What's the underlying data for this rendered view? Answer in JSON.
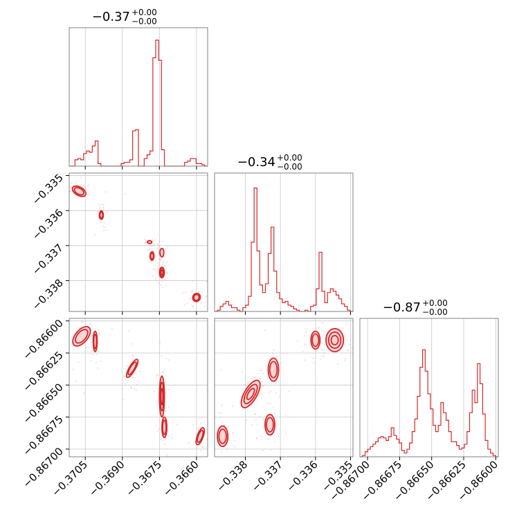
{
  "chart_data": {
    "type": "corner",
    "color": "#d62728",
    "grid": true,
    "parameters": [
      {
        "title_main": "−0.37",
        "title_sup": "+0.00",
        "title_sub": "−0.00",
        "range": [
          -0.37115,
          -0.36555
        ],
        "ticks": [
          -0.3705,
          -0.369,
          -0.3675,
          -0.366
        ],
        "tick_labels": [
          "−0.3705",
          "−0.3690",
          "−0.3675",
          "−0.3660"
        ]
      },
      {
        "title_main": "−0.34",
        "title_sup": "+0.00",
        "title_sub": "−0.00",
        "range": [
          -0.33888,
          -0.33493
        ],
        "ticks": [
          -0.338,
          -0.337,
          -0.336,
          -0.335
        ],
        "tick_labels": [
          "−0.338",
          "−0.337",
          "−0.336",
          "−0.335"
        ]
      },
      {
        "title_main": "−0.87",
        "title_sup": "+0.00",
        "title_sub": "−0.00",
        "range": [
          -0.86706,
          -0.86598
        ],
        "ticks": [
          -0.867,
          -0.86675,
          -0.8665,
          -0.86625,
          -0.866
        ],
        "tick_labels": [
          "−0.86700",
          "−0.86675",
          "−0.86650",
          "−0.86625",
          "−0.86600"
        ]
      }
    ],
    "histograms": [
      {
        "param": 0,
        "values": [
          0.0,
          0.0,
          0.05,
          0.06,
          0.05,
          0.1,
          0.12,
          0.11,
          0.16,
          0.2,
          0.02,
          0.0,
          0.0,
          0.0,
          0.0,
          0.0,
          0.0,
          0.0,
          0.02,
          0.03,
          0.03,
          0.05,
          0.28,
          0.29,
          0.0,
          0.0,
          0.06,
          0.09,
          0.12,
          0.86,
          1.0,
          0.84,
          0.13,
          0.0,
          0.0,
          0.0,
          0.0,
          0.0,
          0.0,
          0.0,
          0.03,
          0.04,
          0.06,
          0.06,
          0.02,
          0.02,
          0.01,
          0.0
        ]
      },
      {
        "param": 1,
        "values": [
          0.0,
          0.01,
          0.04,
          0.06,
          0.08,
          0.05,
          0.03,
          0.03,
          0.01,
          0.0,
          0.03,
          0.05,
          0.12,
          0.55,
          0.98,
          0.48,
          0.21,
          0.15,
          0.22,
          0.46,
          0.67,
          0.32,
          0.15,
          0.1,
          0.07,
          0.08,
          0.05,
          0.04,
          0.02,
          0.01,
          0.0,
          0.0,
          0.01,
          0.0,
          0.04,
          0.05,
          0.18,
          0.47,
          0.16,
          0.07,
          0.15,
          0.18,
          0.16,
          0.13,
          0.1,
          0.06,
          0.04,
          0.01,
          0.0
        ]
      },
      {
        "param": 2,
        "values": [
          0.0,
          0.01,
          0.04,
          0.06,
          0.08,
          0.1,
          0.12,
          0.15,
          0.16,
          0.15,
          0.13,
          0.16,
          0.23,
          0.17,
          0.14,
          0.11,
          0.05,
          0.03,
          0.06,
          0.11,
          0.2,
          0.3,
          0.48,
          0.71,
          0.85,
          0.68,
          0.5,
          0.38,
          0.25,
          0.2,
          0.25,
          0.43,
          0.35,
          0.29,
          0.2,
          0.12,
          0.12,
          0.09,
          0.06,
          0.07,
          0.1,
          0.2,
          0.35,
          0.53,
          0.43,
          0.74,
          0.58,
          0.34,
          0.13,
          0.06,
          0.03,
          0.01,
          0.0
        ]
      }
    ],
    "densities_2d": [
      {
        "x_param": 0,
        "y_param": 1,
        "clusters": [
          {
            "x": -0.37075,
            "y": -0.33545,
            "sx": 0.0003,
            "sy": 0.00012,
            "rot": 30,
            "levels": 2
          },
          {
            "x": -0.36985,
            "y": -0.33613,
            "sx": 8e-05,
            "sy": 0.00012,
            "rot": 0,
            "levels": 2
          },
          {
            "x": -0.3679,
            "y": -0.3369,
            "sx": 9e-05,
            "sy": 4e-05,
            "rot": 0,
            "levels": 1
          },
          {
            "x": -0.3678,
            "y": -0.3373,
            "sx": 8e-05,
            "sy": 0.00012,
            "rot": 0,
            "levels": 2
          },
          {
            "x": -0.3674,
            "y": -0.3372,
            "sx": 8e-05,
            "sy": 0.00012,
            "rot": 0,
            "levels": 1
          },
          {
            "x": -0.3674,
            "y": -0.33777,
            "sx": 0.0001,
            "sy": 0.00015,
            "rot": 0,
            "levels": 3
          },
          {
            "x": -0.366,
            "y": -0.33848,
            "sx": 0.00015,
            "sy": 0.00012,
            "rot": 20,
            "levels": 2
          }
        ]
      },
      {
        "x_param": 0,
        "y_param": 2,
        "clusters": [
          {
            "x": -0.37065,
            "y": -0.86612,
            "sx": 0.00025,
            "sy": 9e-05,
            "rot": 40,
            "levels": 2
          },
          {
            "x": -0.3701,
            "y": -0.86616,
            "sx": 8e-05,
            "sy": 8e-05,
            "rot": 0,
            "levels": 2
          },
          {
            "x": -0.3686,
            "y": -0.86637,
            "sx": 0.00012,
            "sy": 8e-05,
            "rot": 30,
            "levels": 2
          },
          {
            "x": -0.3674,
            "y": -0.86659,
            "sx": 0.0001,
            "sy": 0.00016,
            "rot": 0,
            "levels": 3
          },
          {
            "x": -0.3673,
            "y": -0.86683,
            "sx": 0.0001,
            "sy": 8e-05,
            "rot": 0,
            "levels": 2
          },
          {
            "x": -0.36585,
            "y": -0.8669,
            "sx": 0.00012,
            "sy": 7e-05,
            "rot": 20,
            "levels": 2
          }
        ]
      },
      {
        "x_param": 1,
        "y_param": 2,
        "clusters": [
          {
            "x": -0.33865,
            "y": -0.8669,
            "sx": 0.00015,
            "sy": 8e-05,
            "rot": 0,
            "levels": 2
          },
          {
            "x": -0.33785,
            "y": -0.86657,
            "sx": 0.00018,
            "sy": 0.00012,
            "rot": 30,
            "levels": 3
          },
          {
            "x": -0.3373,
            "y": -0.86681,
            "sx": 0.00014,
            "sy": 8e-05,
            "rot": 0,
            "levels": 2
          },
          {
            "x": -0.3372,
            "y": -0.86638,
            "sx": 0.00015,
            "sy": 9e-05,
            "rot": 0,
            "levels": 2
          },
          {
            "x": -0.336,
            "y": -0.86615,
            "sx": 0.00013,
            "sy": 7e-05,
            "rot": 0,
            "levels": 2
          },
          {
            "x": -0.33545,
            "y": -0.86615,
            "sx": 0.00025,
            "sy": 9e-05,
            "rot": 0,
            "levels": 3
          }
        ]
      }
    ]
  }
}
